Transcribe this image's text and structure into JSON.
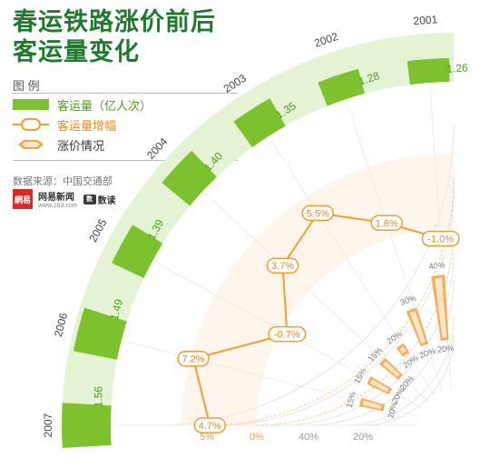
{
  "title_line1": "春运铁路涨价前后",
  "title_line2": "客运量变化",
  "legend": {
    "title": "图 例",
    "items": [
      {
        "label": "客运量（亿人次）",
        "color": "#7dc22e"
      },
      {
        "label": "客运量增幅",
        "color": "#f29c33"
      },
      {
        "label": "涨价情况",
        "color": "#f5a34a"
      }
    ]
  },
  "source": "数据来源：中国交通部",
  "logos": {
    "netease_box": "網易",
    "netease_name": "网易新闻",
    "netease_url": "www.163.com",
    "dudu_mark": "数",
    "dudu_name": "数读"
  },
  "colors": {
    "green": "#7dc22e",
    "green_light": "#e3f3d3",
    "orange": "#f29c33",
    "orange_light": "#fde6c8"
  },
  "chart_data": {
    "type": "radial-bar",
    "passenger_volume": {
      "years": [
        "2001",
        "2002",
        "2003",
        "2004",
        "2005",
        "2006",
        "2007"
      ],
      "values": [
        1.26,
        1.28,
        1.35,
        1.4,
        1.39,
        1.49,
        1.56
      ],
      "labels": [
        "1.26",
        "1.28",
        "1.35",
        "1.40",
        "1.39",
        "1.49",
        "1.56"
      ]
    },
    "growth_rate": {
      "values": [
        -1.0,
        1.6,
        5.5,
        3.7,
        -0.7,
        7.2,
        4.7
      ],
      "labels": [
        "-1.0%",
        "1.6%",
        "5.5%",
        "3.7%",
        "-0.7%",
        "7.2%",
        "4.7%"
      ]
    },
    "growth_axis": {
      "ticks": [
        "5%",
        "0%"
      ]
    },
    "price_axis": {
      "ticks": [
        "40%",
        "20%"
      ]
    },
    "price_increase": {
      "bars": [
        {
          "labels": [
            "20%",
            "40%"
          ]
        },
        {
          "labels": [
            "20%",
            "30%"
          ]
        },
        {
          "labels": [
            "20%",
            "20%"
          ]
        },
        {
          "labels": [
            "20%",
            "15%"
          ]
        },
        {
          "labels": [
            "20%",
            "15%"
          ]
        },
        {
          "labels": [
            "20%",
            "15%"
          ]
        }
      ]
    }
  }
}
